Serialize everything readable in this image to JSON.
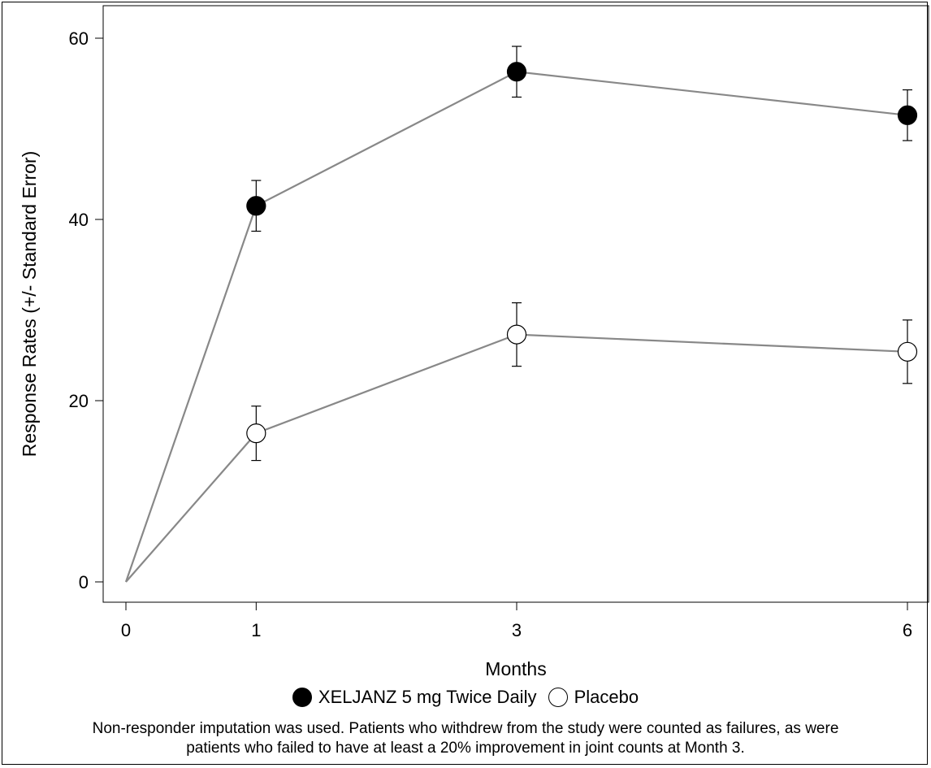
{
  "chart_data": {
    "type": "line",
    "x": [
      0,
      1,
      3,
      6
    ],
    "xlabel": "Months",
    "ylabel": "Response Rates (+/- Standard Error)",
    "x_ticks": [
      "0",
      "1",
      "3",
      "6"
    ],
    "y_ticks": [
      "0",
      "20",
      "40",
      "60"
    ],
    "ylim": [
      0,
      60
    ],
    "grid": false,
    "series": [
      {
        "name": "XELJANZ 5 mg Twice Daily",
        "marker": "filled-circle",
        "values": [
          0,
          41.5,
          56.3,
          51.5
        ],
        "error": [
          0,
          2.8,
          2.8,
          2.8
        ]
      },
      {
        "name": "Placebo",
        "marker": "open-circle",
        "values": [
          0,
          16.4,
          27.3,
          25.4
        ],
        "error": [
          0,
          3.0,
          3.5,
          3.5
        ]
      }
    ],
    "legend_position": "bottom"
  },
  "footnote": {
    "line1": "Non-responder imputation was used. Patients who withdrew from the study were counted as failures, as were",
    "line2": "patients who failed to have at least a 20% improvement in joint counts at Month 3."
  },
  "colors": {
    "line": "#888888",
    "filled_marker": "#000000",
    "open_marker": "#ffffff"
  }
}
